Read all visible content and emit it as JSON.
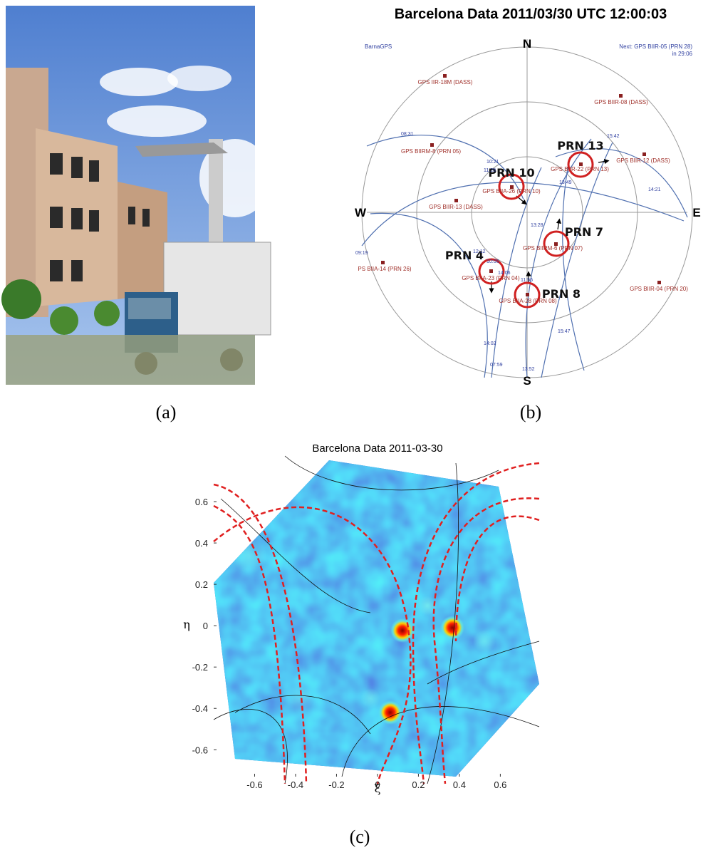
{
  "panel_a": {
    "label": "(a)"
  },
  "panel_b": {
    "label": "(b)",
    "title": "Barcelona  Data 2011/03/30 UTC 12:00:03",
    "source": "BarnaGPS",
    "next_line1": "Next: GPS BIIR-05 (PRN 28)",
    "next_line2": "in 29:06",
    "compass": {
      "n": "N",
      "s": "S",
      "e": "E",
      "w": "W"
    },
    "satellites": [
      "GPS IIR-18M (DASS)",
      "GPS BIIR-08 (DASS)",
      "GPS BIIRM-8 (PRN 05)",
      "GPS BIIR-12 (DASS)",
      "GPS BIIR-22 (PRN 13)",
      "GPS BIIA-26 (PRN 10)",
      "GPS BIIR-13 (DASS)",
      "GPS BIIRM-6 (PRN 07)",
      "PS BIIA-14 (PRN 26)",
      "GPS BIIA-23 (PRN 04)",
      "GPS BIIA-28 (PRN 08)",
      "GPS BIIR-04 (PRN 20)"
    ],
    "prn_labels": [
      "PRN 13",
      "PRN 10",
      "PRN 7",
      "PRN 4",
      "PRN 8"
    ],
    "times": [
      "08:31",
      "10:21",
      "11:28",
      "15:42",
      "09:19",
      "12:12",
      "10:06",
      "14:06",
      "11:56",
      "13:28",
      "13:49",
      "14:21",
      "15:47",
      "14:02",
      "07:59",
      "13:52"
    ]
  },
  "panel_c": {
    "label": "(c)",
    "title": "Barcelona Data 2011-03-30",
    "xlabel": "ξ",
    "ylabel": "η",
    "xlim": [
      -0.8,
      0.79
    ],
    "ylim": [
      -0.73,
      0.8
    ],
    "xticks": [
      -0.6,
      -0.4,
      -0.2,
      0,
      0.2,
      0.4,
      0.6
    ],
    "yticks": [
      0.6,
      0.4,
      0.2,
      0,
      -0.2,
      -0.4,
      -0.6
    ]
  }
}
